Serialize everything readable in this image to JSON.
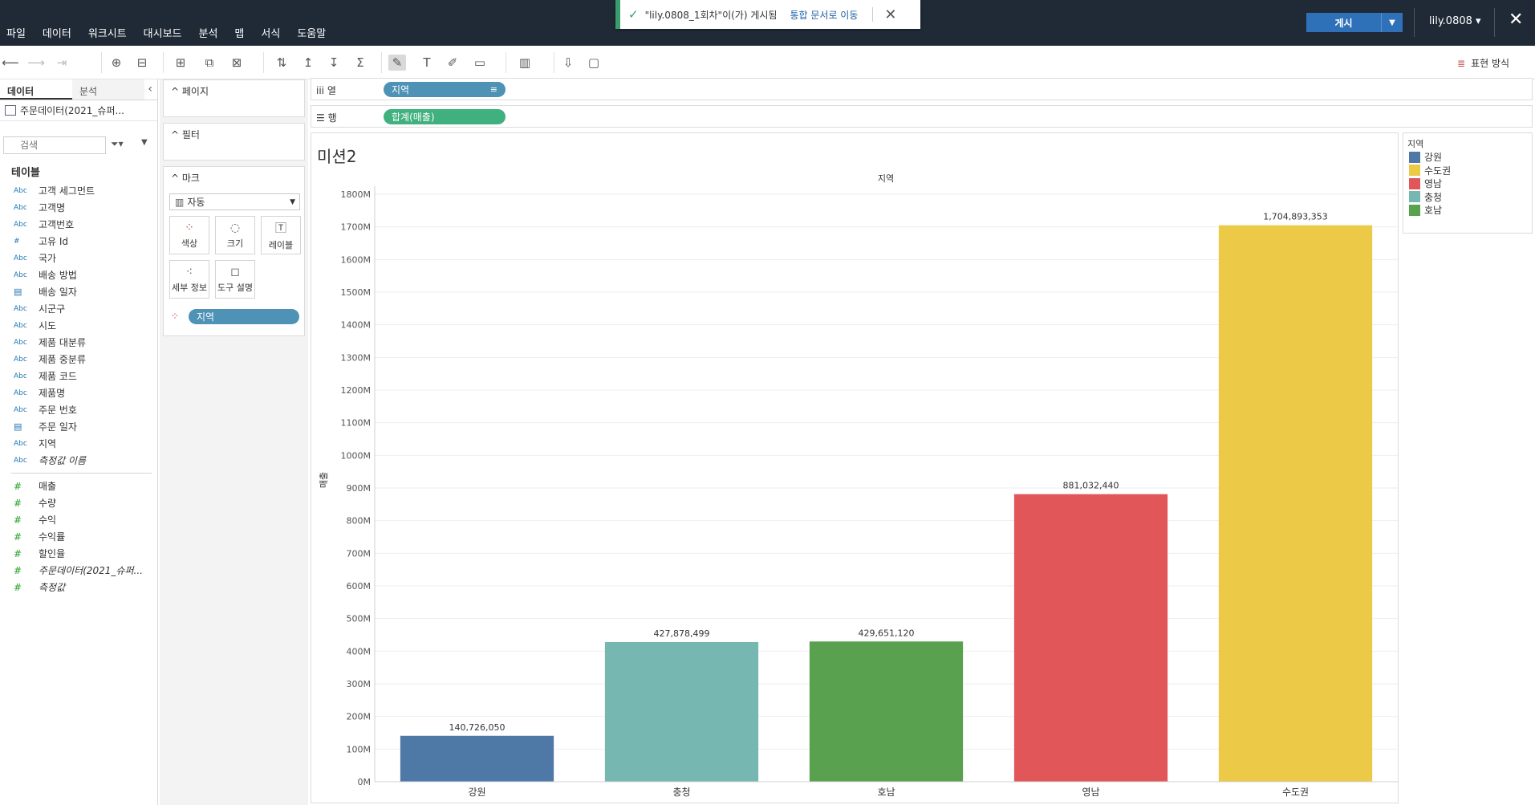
{
  "menu": [
    "파일",
    "데이터",
    "워크시트",
    "대시보드",
    "분석",
    "맵",
    "서식",
    "도움말"
  ],
  "toast": {
    "message": "\"lily.0808_1회차\"이(가) 게시됨",
    "link": "통합 문서로 이동"
  },
  "publish": {
    "label": "게시"
  },
  "user": {
    "name": "lily.0808 ▾"
  },
  "toolbar": {
    "show_me": "표현 방식"
  },
  "data_pane": {
    "tab_data": "데이터",
    "tab_analysis": "분석",
    "datasource": "주문데이터(2021_슈퍼...",
    "search_placeholder": "검색",
    "tables_heading": "테이블",
    "dimensions": [
      {
        "type": "Abc",
        "name": "고객 세그먼트"
      },
      {
        "type": "Abc",
        "name": "고객명"
      },
      {
        "type": "Abc",
        "name": "고객번호"
      },
      {
        "type": "#",
        "name": "고유 Id"
      },
      {
        "type": "Abc",
        "name": "국가"
      },
      {
        "type": "Abc",
        "name": "배송 방법"
      },
      {
        "type": "date",
        "name": "배송 일자"
      },
      {
        "type": "Abc",
        "name": "시군구"
      },
      {
        "type": "Abc",
        "name": "시도"
      },
      {
        "type": "Abc",
        "name": "제품 대분류"
      },
      {
        "type": "Abc",
        "name": "제품 중분류"
      },
      {
        "type": "Abc",
        "name": "제품 코드"
      },
      {
        "type": "Abc",
        "name": "제품명"
      },
      {
        "type": "Abc",
        "name": "주문 번호"
      },
      {
        "type": "date",
        "name": "주문 일자"
      },
      {
        "type": "Abc",
        "name": "지역"
      },
      {
        "type": "Abc",
        "name": "측정값 이름",
        "italic": true
      }
    ],
    "measures": [
      {
        "name": "매출"
      },
      {
        "name": "수량"
      },
      {
        "name": "수익"
      },
      {
        "name": "수익률"
      },
      {
        "name": "할인율"
      },
      {
        "name": "주문데이터(2021_슈퍼...",
        "italic": true
      },
      {
        "name": "측정값",
        "italic": true
      }
    ]
  },
  "cards": {
    "pages": "페이지",
    "filters": "필터",
    "marks": "마크",
    "marks_type": "자동",
    "buttons": [
      "색상",
      "크기",
      "레이블",
      "세부 정보",
      "도구 설명"
    ],
    "color_pill": "지역"
  },
  "shelves": {
    "columns_label": "열",
    "columns_pill": "지역",
    "rows_label": "행",
    "rows_pill": "합계(매출)"
  },
  "sheet": {
    "title": "미션2"
  },
  "legend": {
    "title": "지역",
    "items": [
      {
        "name": "강원",
        "color": "#4e79a7"
      },
      {
        "name": "수도권",
        "color": "#edc948"
      },
      {
        "name": "영남",
        "color": "#e15759"
      },
      {
        "name": "충청",
        "color": "#76b7b2"
      },
      {
        "name": "호남",
        "color": "#59a14f"
      }
    ]
  },
  "chart_data": {
    "type": "bar",
    "header": "지역",
    "ylabel": "매출",
    "categories": [
      "강원",
      "충청",
      "호남",
      "영남",
      "수도권"
    ],
    "values": [
      140726050,
      427878499,
      429651120,
      881032440,
      1704893353
    ],
    "data_labels": [
      "140,726,050",
      "427,878,499",
      "429,651,120",
      "881,032,440",
      "1,704,893,353"
    ],
    "colors": [
      "#4e79a7",
      "#76b7b2",
      "#59a14f",
      "#e15759",
      "#edc948"
    ],
    "ylim": [
      0,
      1800000000
    ],
    "yticks": [
      "0M",
      "100M",
      "200M",
      "300M",
      "400M",
      "500M",
      "600M",
      "700M",
      "800M",
      "900M",
      "1000M",
      "1100M",
      "1200M",
      "1300M",
      "1400M",
      "1500M",
      "1600M",
      "1700M",
      "1800M"
    ],
    "grid": true
  }
}
